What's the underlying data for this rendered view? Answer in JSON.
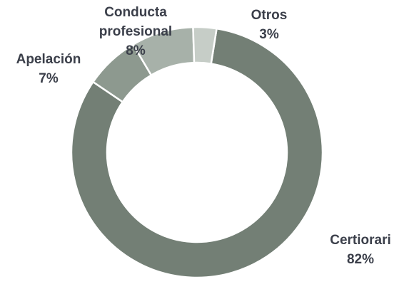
{
  "chart_data": {
    "type": "donut",
    "categories": [
      "Certiorari",
      "Apelación",
      "Conducta profesional",
      "Otros"
    ],
    "values": [
      82,
      7,
      8,
      3
    ],
    "value_labels": [
      "82%",
      "7%",
      "8%",
      "3%"
    ],
    "colors": [
      "#737f75",
      "#8d998f",
      "#a7b1a9",
      "#c6cdc7"
    ]
  }
}
